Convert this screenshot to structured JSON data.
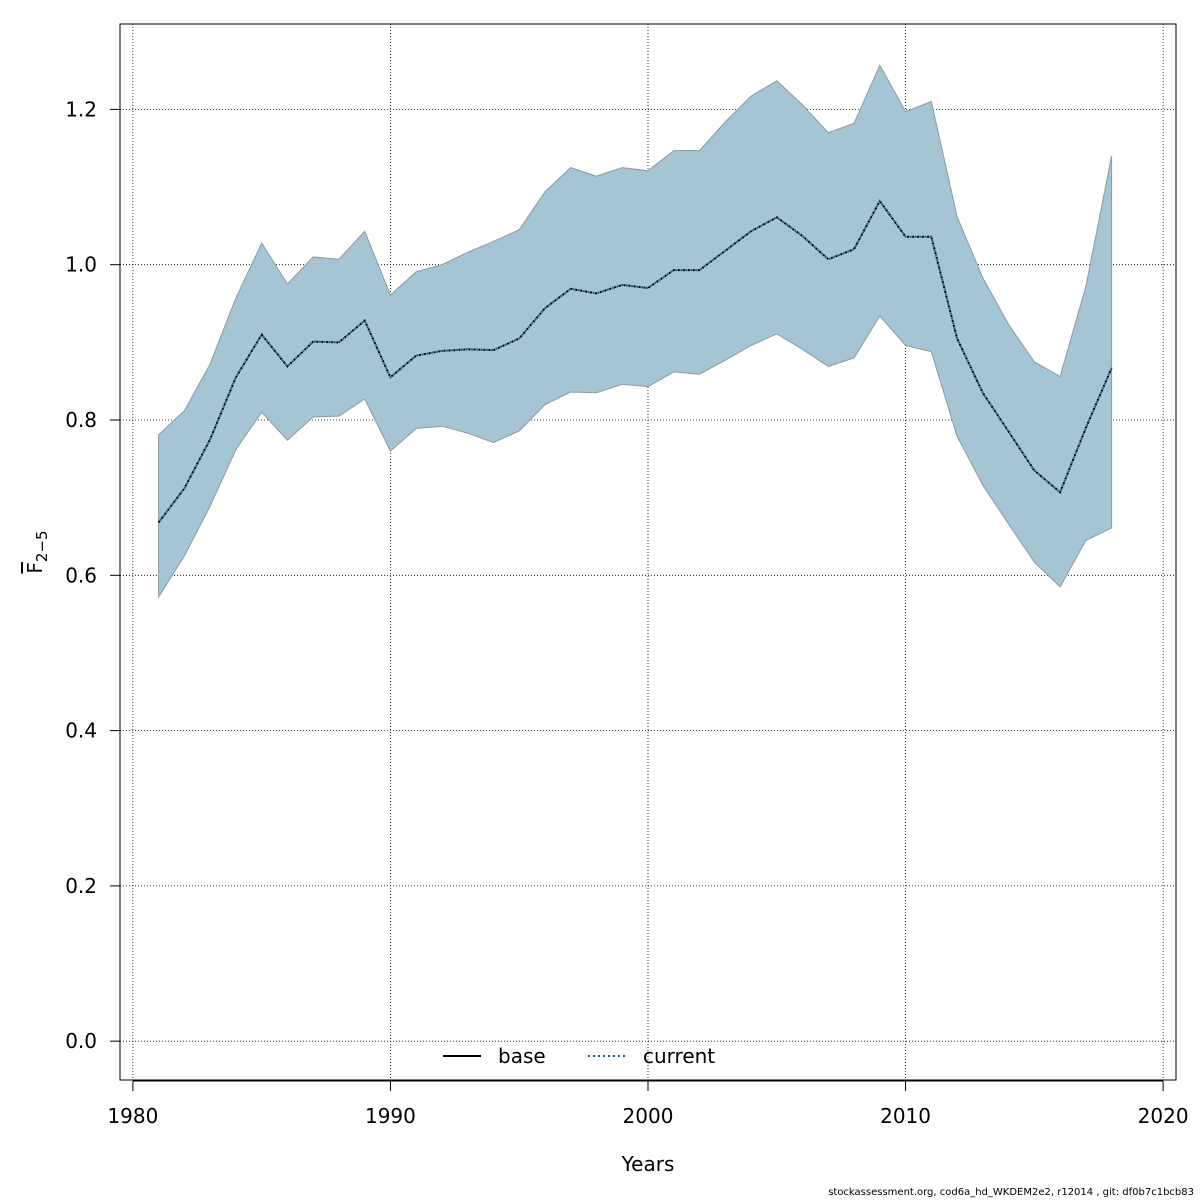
{
  "chart_data": {
    "type": "line",
    "xlabel": "Years",
    "ylabel_main": "F",
    "ylabel_sub": "2−5",
    "xlim": [
      1979.5,
      2020.5
    ],
    "ylim": [
      -0.05,
      1.31
    ],
    "x_ticks": [
      1980,
      1990,
      2000,
      2010,
      2020
    ],
    "y_ticks": [
      0.0,
      0.2,
      0.4,
      0.6,
      0.8,
      1.0,
      1.2
    ],
    "x_tick_labels": [
      "1980",
      "1990",
      "2000",
      "2010",
      "2020"
    ],
    "y_tick_labels": [
      "0.0",
      "0.2",
      "0.4",
      "0.6",
      "0.8",
      "1.0",
      "1.2"
    ],
    "grid": true,
    "legend_position": "bottom-center",
    "legend": [
      {
        "label": "base",
        "style": "solid",
        "color": "#000000"
      },
      {
        "label": "current",
        "style": "dotted",
        "color": "#1f5f8b"
      }
    ],
    "band_color": "#a5c4d4",
    "x": [
      1981,
      1982,
      1983,
      1984,
      1985,
      1986,
      1987,
      1988,
      1989,
      1990,
      1991,
      1992,
      1993,
      1994,
      1995,
      1996,
      1997,
      1998,
      1999,
      2000,
      2001,
      2002,
      2003,
      2004,
      2005,
      2006,
      2007,
      2008,
      2009,
      2010,
      2011,
      2012,
      2013,
      2014,
      2015,
      2016,
      2017,
      2018
    ],
    "series": [
      {
        "name": "base",
        "values": [
          0.668,
          0.712,
          0.775,
          0.855,
          0.91,
          0.869,
          0.901,
          0.9,
          0.928,
          0.855,
          0.883,
          0.889,
          0.891,
          0.89,
          0.905,
          0.944,
          0.969,
          0.963,
          0.974,
          0.97,
          0.993,
          0.993,
          1.018,
          1.043,
          1.061,
          1.037,
          1.007,
          1.02,
          1.082,
          1.036,
          1.036,
          0.905,
          0.835,
          0.785,
          0.735,
          0.707,
          0.79,
          0.867
        ]
      },
      {
        "name": "current",
        "values": [
          0.668,
          0.712,
          0.775,
          0.855,
          0.91,
          0.869,
          0.901,
          0.9,
          0.928,
          0.855,
          0.883,
          0.889,
          0.891,
          0.89,
          0.905,
          0.944,
          0.969,
          0.963,
          0.974,
          0.97,
          0.993,
          0.993,
          1.018,
          1.043,
          1.061,
          1.037,
          1.007,
          1.02,
          1.082,
          1.036,
          1.036,
          0.905,
          0.835,
          0.785,
          0.735,
          0.707,
          0.79,
          0.867
        ]
      }
    ],
    "band_upper": [
      0.781,
      0.812,
      0.872,
      0.957,
      1.028,
      0.975,
      1.01,
      1.007,
      1.043,
      0.961,
      0.991,
      1.0,
      1.016,
      1.03,
      1.045,
      1.094,
      1.125,
      1.114,
      1.125,
      1.121,
      1.147,
      1.147,
      1.184,
      1.217,
      1.237,
      1.206,
      1.17,
      1.182,
      1.257,
      1.197,
      1.21,
      1.062,
      0.983,
      0.923,
      0.875,
      0.856,
      0.972,
      1.14
    ],
    "band_lower": [
      0.572,
      0.625,
      0.689,
      0.762,
      0.81,
      0.774,
      0.804,
      0.805,
      0.827,
      0.76,
      0.789,
      0.792,
      0.783,
      0.771,
      0.786,
      0.82,
      0.836,
      0.835,
      0.846,
      0.843,
      0.862,
      0.859,
      0.877,
      0.896,
      0.911,
      0.891,
      0.869,
      0.88,
      0.934,
      0.896,
      0.888,
      0.779,
      0.716,
      0.666,
      0.617,
      0.585,
      0.645,
      0.661
    ]
  },
  "footer": "stockassessment.org, cod6a_hd_WKDEM2e2, r12014 , git: df0b7c1bcb83"
}
